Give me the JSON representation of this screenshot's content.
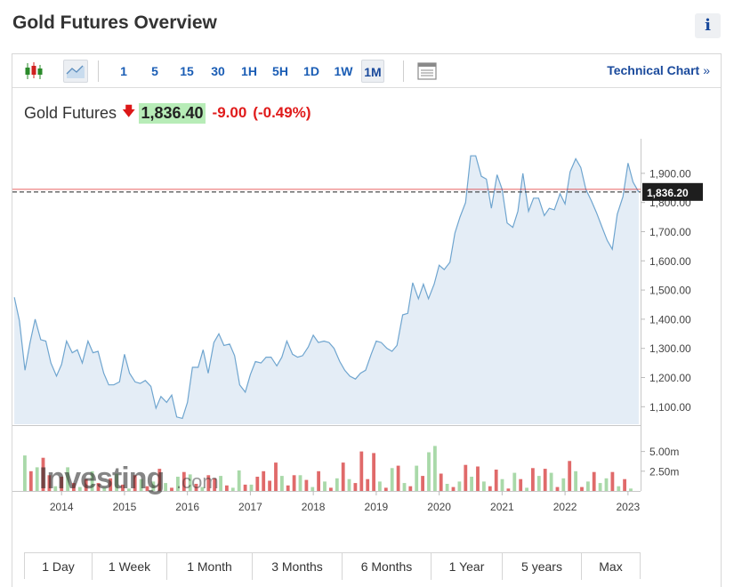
{
  "header": {
    "title": "Gold Futures Overview",
    "info_label": "i"
  },
  "toolbar": {
    "periods": [
      "1",
      "5",
      "15",
      "30",
      "1H",
      "5H",
      "1D",
      "1W",
      "1M"
    ],
    "active_period": "1M",
    "technical_chart_label": "Technical Chart",
    "technical_chart_arrow": "»"
  },
  "quote": {
    "name": "Gold Futures",
    "arrow": "🡇",
    "price": "1,836.40",
    "change": "-9.00",
    "change_pct": "(-0.49%)"
  },
  "watermark": {
    "text_main": "Investing",
    "text_suffix": ".com"
  },
  "colors": {
    "line": "#6fa5cf",
    "area": "#e4edf6",
    "up_volume": "#a9d9a9",
    "down_volume": "#e06a6a",
    "last_price_line": "#e02020",
    "last_price_label_bg": "#1e1e1e",
    "link": "#1a4a9c"
  },
  "range_buttons": [
    "1 Day",
    "1 Week",
    "1 Month",
    "3 Months",
    "6 Months",
    "1 Year",
    "5 years",
    "Max"
  ],
  "chart_data": {
    "type": "area",
    "title": "",
    "xlabel": "",
    "ylabel": "",
    "x_ticks": [
      "2014",
      "2015",
      "2016",
      "2017",
      "2018",
      "2019",
      "2020",
      "2021",
      "2022",
      "2023"
    ],
    "y_ticks": [
      "1,100.00",
      "1,200.00",
      "1,300.00",
      "1,400.00",
      "1,500.00",
      "1,600.00",
      "1,700.00",
      "1,800.00",
      "1,900.00"
    ],
    "ylim": [
      1040,
      1985
    ],
    "xlim": [
      2013.22,
      2023.2
    ],
    "last_price_label": "1,836.20",
    "last_price": 1836.2,
    "previous_close_line": 1845,
    "series": [
      {
        "values": [
          [
            2013.25,
            1475
          ],
          [
            2013.33,
            1395
          ],
          [
            2013.42,
            1225
          ],
          [
            2013.5,
            1320
          ],
          [
            2013.58,
            1400
          ],
          [
            2013.67,
            1330
          ],
          [
            2013.75,
            1325
          ],
          [
            2013.83,
            1250
          ],
          [
            2013.92,
            1205
          ],
          [
            2014.0,
            1245
          ],
          [
            2014.08,
            1325
          ],
          [
            2014.17,
            1285
          ],
          [
            2014.25,
            1295
          ],
          [
            2014.33,
            1250
          ],
          [
            2014.42,
            1325
          ],
          [
            2014.5,
            1285
          ],
          [
            2014.58,
            1290
          ],
          [
            2014.67,
            1215
          ],
          [
            2014.75,
            1175
          ],
          [
            2014.83,
            1175
          ],
          [
            2014.92,
            1185
          ],
          [
            2015.0,
            1280
          ],
          [
            2015.08,
            1215
          ],
          [
            2015.17,
            1185
          ],
          [
            2015.25,
            1180
          ],
          [
            2015.33,
            1190
          ],
          [
            2015.42,
            1170
          ],
          [
            2015.5,
            1095
          ],
          [
            2015.58,
            1135
          ],
          [
            2015.67,
            1115
          ],
          [
            2015.75,
            1140
          ],
          [
            2015.83,
            1065
          ],
          [
            2015.92,
            1060
          ],
          [
            2016.0,
            1115
          ],
          [
            2016.08,
            1235
          ],
          [
            2016.17,
            1235
          ],
          [
            2016.25,
            1295
          ],
          [
            2016.33,
            1215
          ],
          [
            2016.42,
            1320
          ],
          [
            2016.5,
            1350
          ],
          [
            2016.58,
            1310
          ],
          [
            2016.67,
            1315
          ],
          [
            2016.75,
            1275
          ],
          [
            2016.83,
            1175
          ],
          [
            2016.92,
            1150
          ],
          [
            2017.0,
            1210
          ],
          [
            2017.08,
            1255
          ],
          [
            2017.17,
            1250
          ],
          [
            2017.25,
            1270
          ],
          [
            2017.33,
            1270
          ],
          [
            2017.42,
            1240
          ],
          [
            2017.5,
            1270
          ],
          [
            2017.58,
            1325
          ],
          [
            2017.67,
            1280
          ],
          [
            2017.75,
            1270
          ],
          [
            2017.83,
            1275
          ],
          [
            2017.92,
            1305
          ],
          [
            2018.0,
            1345
          ],
          [
            2018.08,
            1320
          ],
          [
            2018.17,
            1325
          ],
          [
            2018.25,
            1320
          ],
          [
            2018.33,
            1300
          ],
          [
            2018.42,
            1255
          ],
          [
            2018.5,
            1225
          ],
          [
            2018.58,
            1205
          ],
          [
            2018.67,
            1195
          ],
          [
            2018.75,
            1215
          ],
          [
            2018.83,
            1225
          ],
          [
            2018.92,
            1280
          ],
          [
            2019.0,
            1325
          ],
          [
            2019.08,
            1320
          ],
          [
            2019.17,
            1300
          ],
          [
            2019.25,
            1290
          ],
          [
            2019.33,
            1310
          ],
          [
            2019.42,
            1415
          ],
          [
            2019.5,
            1420
          ],
          [
            2019.58,
            1525
          ],
          [
            2019.67,
            1470
          ],
          [
            2019.75,
            1520
          ],
          [
            2019.83,
            1470
          ],
          [
            2019.92,
            1520
          ],
          [
            2020.0,
            1585
          ],
          [
            2020.08,
            1570
          ],
          [
            2020.17,
            1595
          ],
          [
            2020.25,
            1695
          ],
          [
            2020.33,
            1750
          ],
          [
            2020.42,
            1800
          ],
          [
            2020.5,
            1960
          ],
          [
            2020.58,
            1960
          ],
          [
            2020.67,
            1890
          ],
          [
            2020.75,
            1880
          ],
          [
            2020.83,
            1780
          ],
          [
            2020.92,
            1895
          ],
          [
            2021.0,
            1845
          ],
          [
            2021.08,
            1730
          ],
          [
            2021.17,
            1715
          ],
          [
            2021.25,
            1770
          ],
          [
            2021.33,
            1900
          ],
          [
            2021.42,
            1770
          ],
          [
            2021.5,
            1815
          ],
          [
            2021.58,
            1815
          ],
          [
            2021.67,
            1755
          ],
          [
            2021.75,
            1780
          ],
          [
            2021.83,
            1775
          ],
          [
            2021.92,
            1830
          ],
          [
            2022.0,
            1795
          ],
          [
            2022.08,
            1905
          ],
          [
            2022.17,
            1950
          ],
          [
            2022.25,
            1920
          ],
          [
            2022.33,
            1845
          ],
          [
            2022.42,
            1805
          ],
          [
            2022.5,
            1765
          ],
          [
            2022.58,
            1720
          ],
          [
            2022.67,
            1670
          ],
          [
            2022.75,
            1640
          ],
          [
            2022.83,
            1760
          ],
          [
            2022.92,
            1820
          ],
          [
            2023.0,
            1935
          ],
          [
            2023.08,
            1870
          ],
          [
            2023.17,
            1836
          ]
        ]
      }
    ],
    "volume": {
      "y_ticks": [
        "5.00m",
        "2.50m"
      ],
      "ylim": [
        0,
        8
      ],
      "values": [
        4.5,
        2.5,
        3.0,
        4.2,
        2.0,
        0.6,
        1.8,
        3.0,
        1.0,
        0.5,
        1.5,
        2.5,
        1.0,
        0.4,
        1.6,
        2.2,
        0.8,
        0.3,
        2.0,
        1.5,
        0.6,
        1.2,
        2.8,
        1.0,
        0.4,
        1.8,
        2.4,
        2.1,
        0.9,
        0.5,
        2.0,
        1.6,
        1.9,
        0.7,
        0.4,
        2.6,
        0.8,
        0.8,
        1.8,
        2.5,
        1.3,
        3.6,
        1.9,
        0.7,
        2.0,
        2.0,
        1.4,
        0.5,
        2.5,
        1.2,
        0.4,
        1.6,
        3.6,
        1.5,
        1.0,
        5.0,
        1.5,
        4.8,
        1.2,
        0.4,
        2.9,
        3.2,
        1.0,
        0.6,
        3.2,
        1.9,
        4.9,
        5.7,
        2.2,
        0.9,
        0.5,
        1.2,
        3.3,
        1.8,
        3.1,
        1.2,
        0.6,
        2.7,
        1.5,
        0.3,
        2.3,
        1.5,
        0.4,
        2.9,
        1.9,
        2.8,
        2.3,
        0.5,
        1.6,
        3.8,
        2.5,
        0.5,
        1.2,
        2.4,
        1.0,
        1.6,
        2.4,
        0.6,
        1.5,
        0.3
      ],
      "directions": [
        "u",
        "d",
        "u",
        "d",
        "d",
        "u",
        "d",
        "u",
        "d",
        "u",
        "d",
        "u",
        "d",
        "u",
        "d",
        "u",
        "d",
        "u",
        "d",
        "u",
        "d",
        "u",
        "d",
        "u",
        "d",
        "u",
        "d",
        "u",
        "d",
        "u",
        "d",
        "d",
        "u",
        "d",
        "u",
        "u",
        "d",
        "u",
        "d",
        "d",
        "d",
        "d",
        "u",
        "d",
        "d",
        "u",
        "d",
        "u",
        "d",
        "u",
        "d",
        "u",
        "d",
        "u",
        "d",
        "d",
        "d",
        "d",
        "u",
        "d",
        "u",
        "d",
        "u",
        "d",
        "u",
        "d",
        "u",
        "u",
        "d",
        "u",
        "d",
        "u",
        "d",
        "u",
        "d",
        "u",
        "d",
        "d",
        "u",
        "d",
        "u",
        "d",
        "u",
        "d",
        "u",
        "d",
        "u",
        "d",
        "u",
        "d",
        "u",
        "d",
        "u",
        "d",
        "u",
        "u",
        "d",
        "u",
        "d",
        "u"
      ]
    }
  }
}
